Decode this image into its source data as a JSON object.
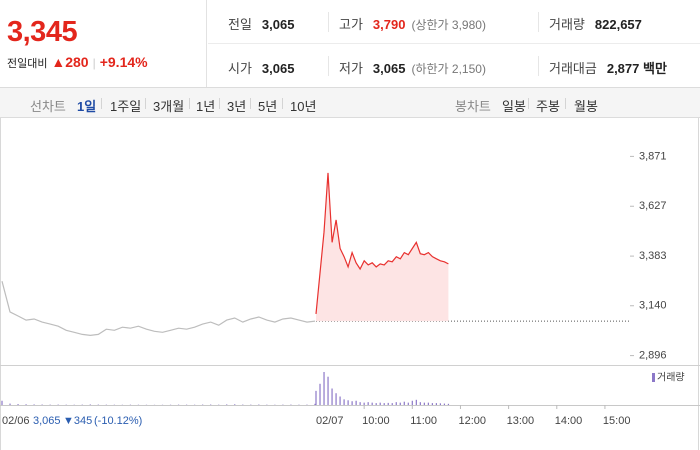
{
  "quote": {
    "price": "3,345",
    "change_label": "전일대비",
    "change": "▲280",
    "change_rate": "+9.14%"
  },
  "summary": {
    "rows": [
      [
        {
          "label": "전일",
          "value": "3,065"
        },
        {
          "label": "고가",
          "value": "3,790",
          "note": "(상한가 3,980)"
        },
        {
          "label": "거래량",
          "value": "822,657"
        }
      ],
      [
        {
          "label": "시가",
          "value": "3,065"
        },
        {
          "label": "저가",
          "value": "3,065",
          "note": "(하한가 2,150)"
        },
        {
          "label": "거래대금",
          "value": "2,877 백만"
        }
      ]
    ]
  },
  "tabs": {
    "line_label": "선차트",
    "line": [
      "1일",
      "1주일",
      "3개월",
      "1년",
      "3년",
      "5년",
      "10년"
    ],
    "candle_label": "봉차트",
    "candle": [
      "일봉",
      "주봉",
      "월봉"
    ]
  },
  "chart_data": {
    "type": "line",
    "ylim": [
      2850,
      4010
    ],
    "yticks": [
      {
        "value": 3871,
        "label": "3,871"
      },
      {
        "value": 3627,
        "label": "3,627"
      },
      {
        "value": 3383,
        "label": "3,383"
      },
      {
        "value": 3140,
        "label": "3,140"
      },
      {
        "value": 2896,
        "label": "2,896"
      }
    ],
    "grid": false,
    "baseline": 3065,
    "volume": {
      "name": "거래량",
      "color": "#8c78c8"
    },
    "days": [
      {
        "name": "02/06",
        "color": "#bdbdbd",
        "fill": null,
        "xlim": [
          540,
          930
        ],
        "close": "3,065",
        "close_change": "▼345",
        "close_rate": "(-10.12%)",
        "x": [
          540,
          550,
          560,
          570,
          580,
          590,
          600,
          610,
          620,
          630,
          640,
          650,
          660,
          670,
          680,
          690,
          700,
          710,
          720,
          730,
          740,
          750,
          760,
          770,
          780,
          790,
          800,
          810,
          820,
          830,
          840,
          850,
          860,
          870,
          880,
          890,
          900,
          910,
          920,
          930
        ],
        "values": [
          3260,
          3110,
          3090,
          3070,
          3075,
          3060,
          3050,
          3040,
          3020,
          3010,
          3000,
          2995,
          3000,
          3025,
          3020,
          3035,
          3030,
          3040,
          3025,
          3015,
          3010,
          3020,
          3030,
          3025,
          3035,
          3050,
          3060,
          3045,
          3070,
          3080,
          3060,
          3075,
          3085,
          3070,
          3060,
          3075,
          3080,
          3070,
          3060,
          3065
        ],
        "volume": [
          9000,
          3000,
          2000,
          1500,
          1200,
          1000,
          800,
          900,
          700,
          600,
          800,
          1200,
          900,
          700,
          600,
          500,
          700,
          600,
          500,
          400,
          500,
          600,
          800,
          700,
          600,
          900,
          1000,
          700,
          1200,
          1500,
          900,
          800,
          1000,
          700,
          600,
          800,
          900,
          700,
          800,
          2500
        ]
      },
      {
        "name": "02/07",
        "color": "#e8312f",
        "fill": "#fde4e4",
        "xlim": [
          540,
          930
        ],
        "xticks": [
          {
            "value": 600,
            "label": "10:00"
          },
          {
            "value": 660,
            "label": "11:00"
          },
          {
            "value": 720,
            "label": "12:00"
          },
          {
            "value": 780,
            "label": "13:00"
          },
          {
            "value": 840,
            "label": "14:00"
          },
          {
            "value": 900,
            "label": "15:00"
          }
        ],
        "x": [
          540,
          545,
          550,
          555,
          560,
          565,
          570,
          575,
          580,
          585,
          590,
          595,
          600,
          605,
          610,
          615,
          620,
          625,
          630,
          635,
          640,
          645,
          650,
          655,
          660,
          665,
          670,
          675,
          680,
          685,
          690,
          695,
          700,
          705
        ],
        "values": [
          3100,
          3300,
          3500,
          3790,
          3450,
          3560,
          3420,
          3380,
          3330,
          3400,
          3350,
          3320,
          3360,
          3340,
          3350,
          3330,
          3345,
          3340,
          3360,
          3355,
          3380,
          3370,
          3400,
          3390,
          3420,
          3450,
          3395,
          3390,
          3400,
          3380,
          3370,
          3360,
          3355,
          3345
        ],
        "volume": [
          30000,
          45000,
          70000,
          60000,
          35000,
          25000,
          18000,
          12000,
          10000,
          8000,
          9000,
          6000,
          5000,
          6000,
          5000,
          4000,
          5000,
          4000,
          4500,
          4000,
          6000,
          5000,
          7000,
          5000,
          9000,
          11000,
          6000,
          5000,
          5000,
          4000,
          4000,
          3500,
          3000,
          2500
        ]
      }
    ]
  }
}
